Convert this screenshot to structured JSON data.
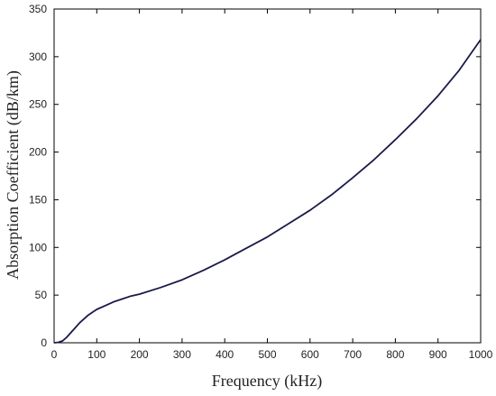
{
  "chart_data": {
    "type": "line",
    "title": "",
    "xlabel": "Frequency (kHz)",
    "ylabel": "Absorption Coefficient (dB/km)",
    "xlim": [
      0,
      1000
    ],
    "ylim": [
      0,
      350
    ],
    "xticks": [
      0,
      100,
      200,
      300,
      400,
      500,
      600,
      700,
      800,
      900,
      1000
    ],
    "yticks": [
      0,
      50,
      100,
      150,
      200,
      250,
      300,
      350
    ],
    "grid": false,
    "legend": "none",
    "series": [
      {
        "color": "#1a1a4a",
        "x": [
          0,
          10,
          20,
          30,
          40,
          50,
          60,
          70,
          80,
          90,
          100,
          120,
          140,
          160,
          180,
          200,
          250,
          300,
          350,
          400,
          450,
          500,
          550,
          600,
          650,
          700,
          750,
          800,
          850,
          900,
          950,
          1000
        ],
        "y": [
          0,
          0.5,
          2,
          6,
          11,
          16,
          21,
          25,
          29,
          32,
          35,
          39,
          43,
          46,
          49,
          51,
          58,
          66,
          76,
          87,
          99,
          111,
          125,
          139,
          155,
          173,
          192,
          213,
          235,
          259,
          286,
          318
        ]
      }
    ]
  }
}
